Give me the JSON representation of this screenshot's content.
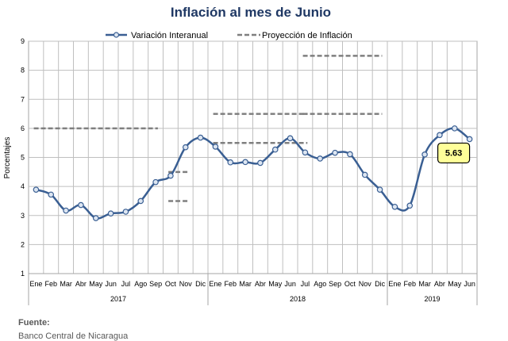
{
  "chart_data": {
    "type": "line",
    "title": "Inflación al mes de Junio",
    "ylabel": "Porcentajes",
    "ylim": [
      1,
      9
    ],
    "yticks": [
      1,
      2,
      3,
      4,
      5,
      6,
      7,
      8,
      9
    ],
    "grid": true,
    "legend_position": "top",
    "categories": [
      "Ene",
      "Feb",
      "Mar",
      "Abr",
      "May",
      "Jun",
      "Jul",
      "Ago",
      "Sep",
      "Oct",
      "Nov",
      "Dic",
      "Ene",
      "Feb",
      "Mar",
      "Abr",
      "May",
      "Jun",
      "Jul",
      "Ago",
      "Sep",
      "Oct",
      "Nov",
      "Dic",
      "Ene",
      "Feb",
      "Mar",
      "Abr",
      "May",
      "Jun"
    ],
    "groups": [
      {
        "label": "2017",
        "count": 12
      },
      {
        "label": "2018",
        "count": 12
      },
      {
        "label": "2019",
        "count": 6
      }
    ],
    "series": [
      {
        "name": "Variación Interanual",
        "color": "#3a5f93",
        "values": [
          3.89,
          3.72,
          3.17,
          3.36,
          2.91,
          3.07,
          3.13,
          3.5,
          4.15,
          4.37,
          5.35,
          5.68,
          5.37,
          4.83,
          4.84,
          4.81,
          5.27,
          5.66,
          5.17,
          4.96,
          5.16,
          5.11,
          4.4,
          3.89,
          3.3,
          3.34,
          5.1,
          5.77,
          6.0,
          5.63
        ]
      }
    ],
    "projections_name": "Proyección de Inflación",
    "projections_color": "#7f7f7f",
    "projections": [
      {
        "from": 0,
        "to": 8,
        "value": 6.0
      },
      {
        "from": 9,
        "to": 10,
        "value": 4.5
      },
      {
        "from": 9,
        "to": 10,
        "value": 3.5
      },
      {
        "from": 12,
        "to": 18,
        "value": 6.5
      },
      {
        "from": 12,
        "to": 18,
        "value": 5.5
      },
      {
        "from": 18,
        "to": 23,
        "value": 8.5
      },
      {
        "from": 18,
        "to": 23,
        "value": 6.5
      }
    ],
    "annotation": {
      "index": 29,
      "text": "5.63",
      "fill": "#ffff99"
    }
  },
  "source": {
    "heading": "Fuente:",
    "text": "Banco Central de Nicaragua"
  }
}
